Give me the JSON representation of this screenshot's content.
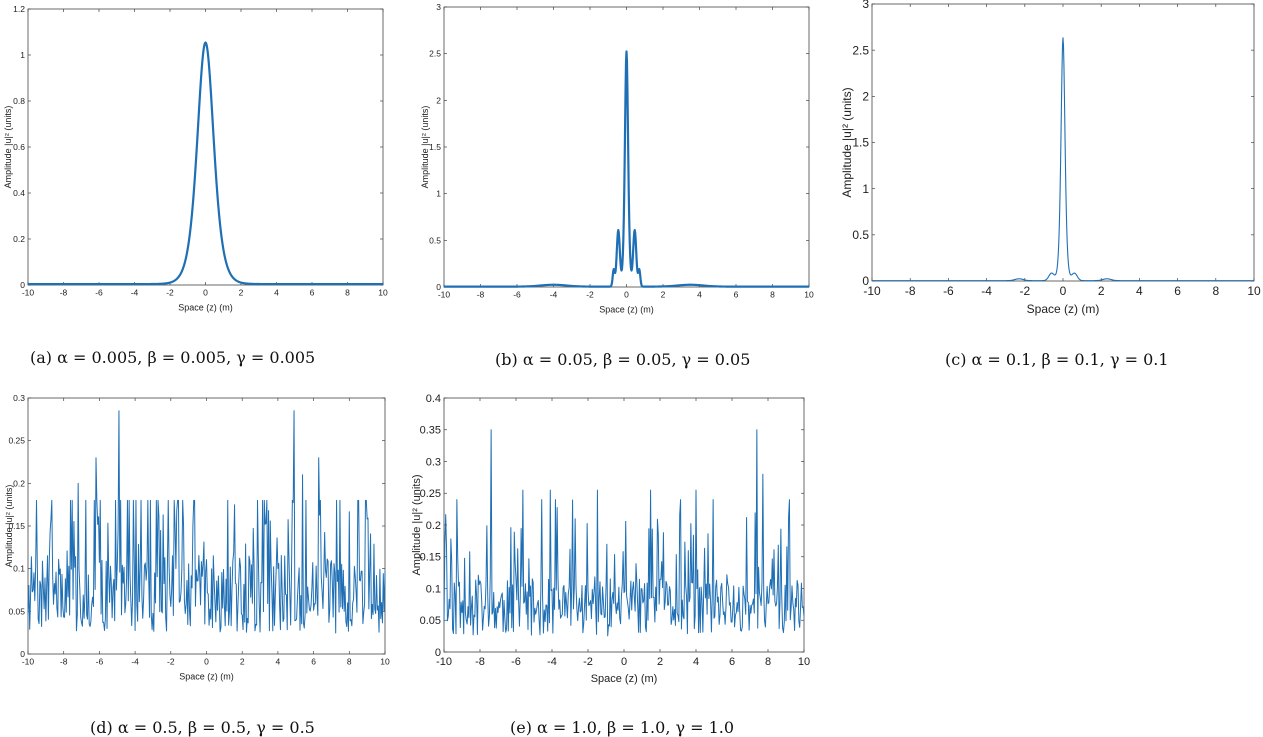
{
  "chart_data": [
    {
      "id": "a",
      "type": "line",
      "caption": "(a)  α = 0.005, β = 0.005,  γ = 0.005",
      "xlabel": "Space (z) (m)",
      "ylabel": "Amplitude |u|² (units)",
      "xlim": [
        -10,
        10
      ],
      "ylim": [
        0,
        1.2
      ],
      "xticks": [
        "-10",
        "-8",
        "-6",
        "-4",
        "-2",
        "0",
        "2",
        "4",
        "6",
        "8",
        "10"
      ],
      "yticks": [
        "0",
        "0.2",
        "0.4",
        "0.6",
        "0.8",
        "1",
        "1.2"
      ],
      "profile": {
        "kind": "sech2",
        "peak": 1.05,
        "width": 0.62,
        "sidelobes": []
      }
    },
    {
      "id": "b",
      "type": "line",
      "caption": "(b) α = 0.05, β = 0.05,  γ = 0.05",
      "xlabel": "Space (z) (m)",
      "ylabel": "Amplitude |u|² (units)",
      "xlim": [
        -10,
        10
      ],
      "ylim": [
        0,
        3
      ],
      "xticks": [
        "-10",
        "-8",
        "-6",
        "-4",
        "-2",
        "0",
        "2",
        "4",
        "6",
        "8",
        "10"
      ],
      "yticks": [
        "0",
        "0.5",
        "1",
        "1.5",
        "2",
        "2.5",
        "3"
      ],
      "profile": {
        "kind": "sech2",
        "peak": 2.52,
        "width": 0.12,
        "sidelobes": [
          [
            -0.45,
            0.6,
            0.12
          ],
          [
            0.45,
            0.6,
            0.12
          ],
          [
            -0.7,
            0.18,
            0.08
          ],
          [
            0.7,
            0.18,
            0.08
          ],
          [
            -4,
            0.02,
            1.0
          ],
          [
            3.5,
            0.02,
            1.0
          ]
        ]
      }
    },
    {
      "id": "c",
      "type": "line",
      "caption": "(c) α = 0.1, β = 0.1,  γ = 0.1",
      "xlabel": "Space (z) (m)",
      "ylabel": "Amplitude |u|² (units)",
      "xlim": [
        -10,
        10
      ],
      "ylim": [
        0,
        3
      ],
      "xticks": [
        "-10",
        "-8",
        "-6",
        "-4",
        "-2",
        "0",
        "2",
        "4",
        "6",
        "8",
        "10"
      ],
      "yticks": [
        "0",
        "0.5",
        "1",
        "1.5",
        "2",
        "2.5",
        "3"
      ],
      "profile": {
        "kind": "sech2",
        "peak": 2.63,
        "width": 0.14,
        "sidelobes": [
          [
            -0.6,
            0.08,
            0.2
          ],
          [
            0.6,
            0.08,
            0.2
          ],
          [
            -2.3,
            0.02,
            0.3
          ],
          [
            2.3,
            0.02,
            0.3
          ]
        ]
      }
    },
    {
      "id": "d",
      "type": "line",
      "caption": "(d) α = 0.5, β = 0.5,  γ = 0.5",
      "xlabel": "Space (z) (m)",
      "ylabel": "Amplitude |u|² (units)",
      "xlim": [
        -10,
        10
      ],
      "ylim": [
        0,
        0.3
      ],
      "xticks": [
        "-10",
        "-8",
        "-6",
        "-4",
        "-2",
        "0",
        "2",
        "4",
        "6",
        "8",
        "10"
      ],
      "yticks": [
        "0",
        "0.05",
        "0.1",
        "0.15",
        "0.2",
        "0.25",
        "0.3"
      ],
      "profile": {
        "kind": "noise",
        "peaks": [
          [
            -4.9,
            0.285
          ],
          [
            4.9,
            0.285
          ],
          [
            -6.2,
            0.23
          ],
          [
            6.3,
            0.23
          ],
          [
            -7.2,
            0.2
          ],
          [
            5.4,
            0.21
          ]
        ],
        "seed": 7,
        "points": 420,
        "base": 0.07,
        "spread": 0.17
      }
    },
    {
      "id": "e",
      "type": "line",
      "caption": "(e) α = 1.0, β = 1.0,  γ = 1.0",
      "xlabel": "Space (z) (m)",
      "ylabel": "Amplitude |u|² (units)",
      "xlim": [
        -10,
        10
      ],
      "ylim": [
        0,
        0.4
      ],
      "xticks": [
        "-10",
        "-8",
        "-6",
        "-4",
        "-2",
        "0",
        "2",
        "4",
        "6",
        "8",
        "10"
      ],
      "yticks": [
        "0",
        "0.05",
        "0.1",
        "0.15",
        "0.2",
        "0.25",
        "0.3",
        "0.35",
        "0.4"
      ],
      "profile": {
        "kind": "noise",
        "peaks": [
          [
            -7.4,
            0.35
          ],
          [
            7.4,
            0.35
          ],
          [
            -5.6,
            0.255
          ],
          [
            -4.1,
            0.255
          ],
          [
            -1.5,
            0.255
          ],
          [
            1.5,
            0.255
          ],
          [
            4.0,
            0.255
          ],
          [
            -9.3,
            0.24
          ],
          [
            9.2,
            0.24
          ],
          [
            7.7,
            0.28
          ]
        ],
        "seed": 11,
        "points": 420,
        "base": 0.07,
        "spread": 0.16
      }
    }
  ]
}
